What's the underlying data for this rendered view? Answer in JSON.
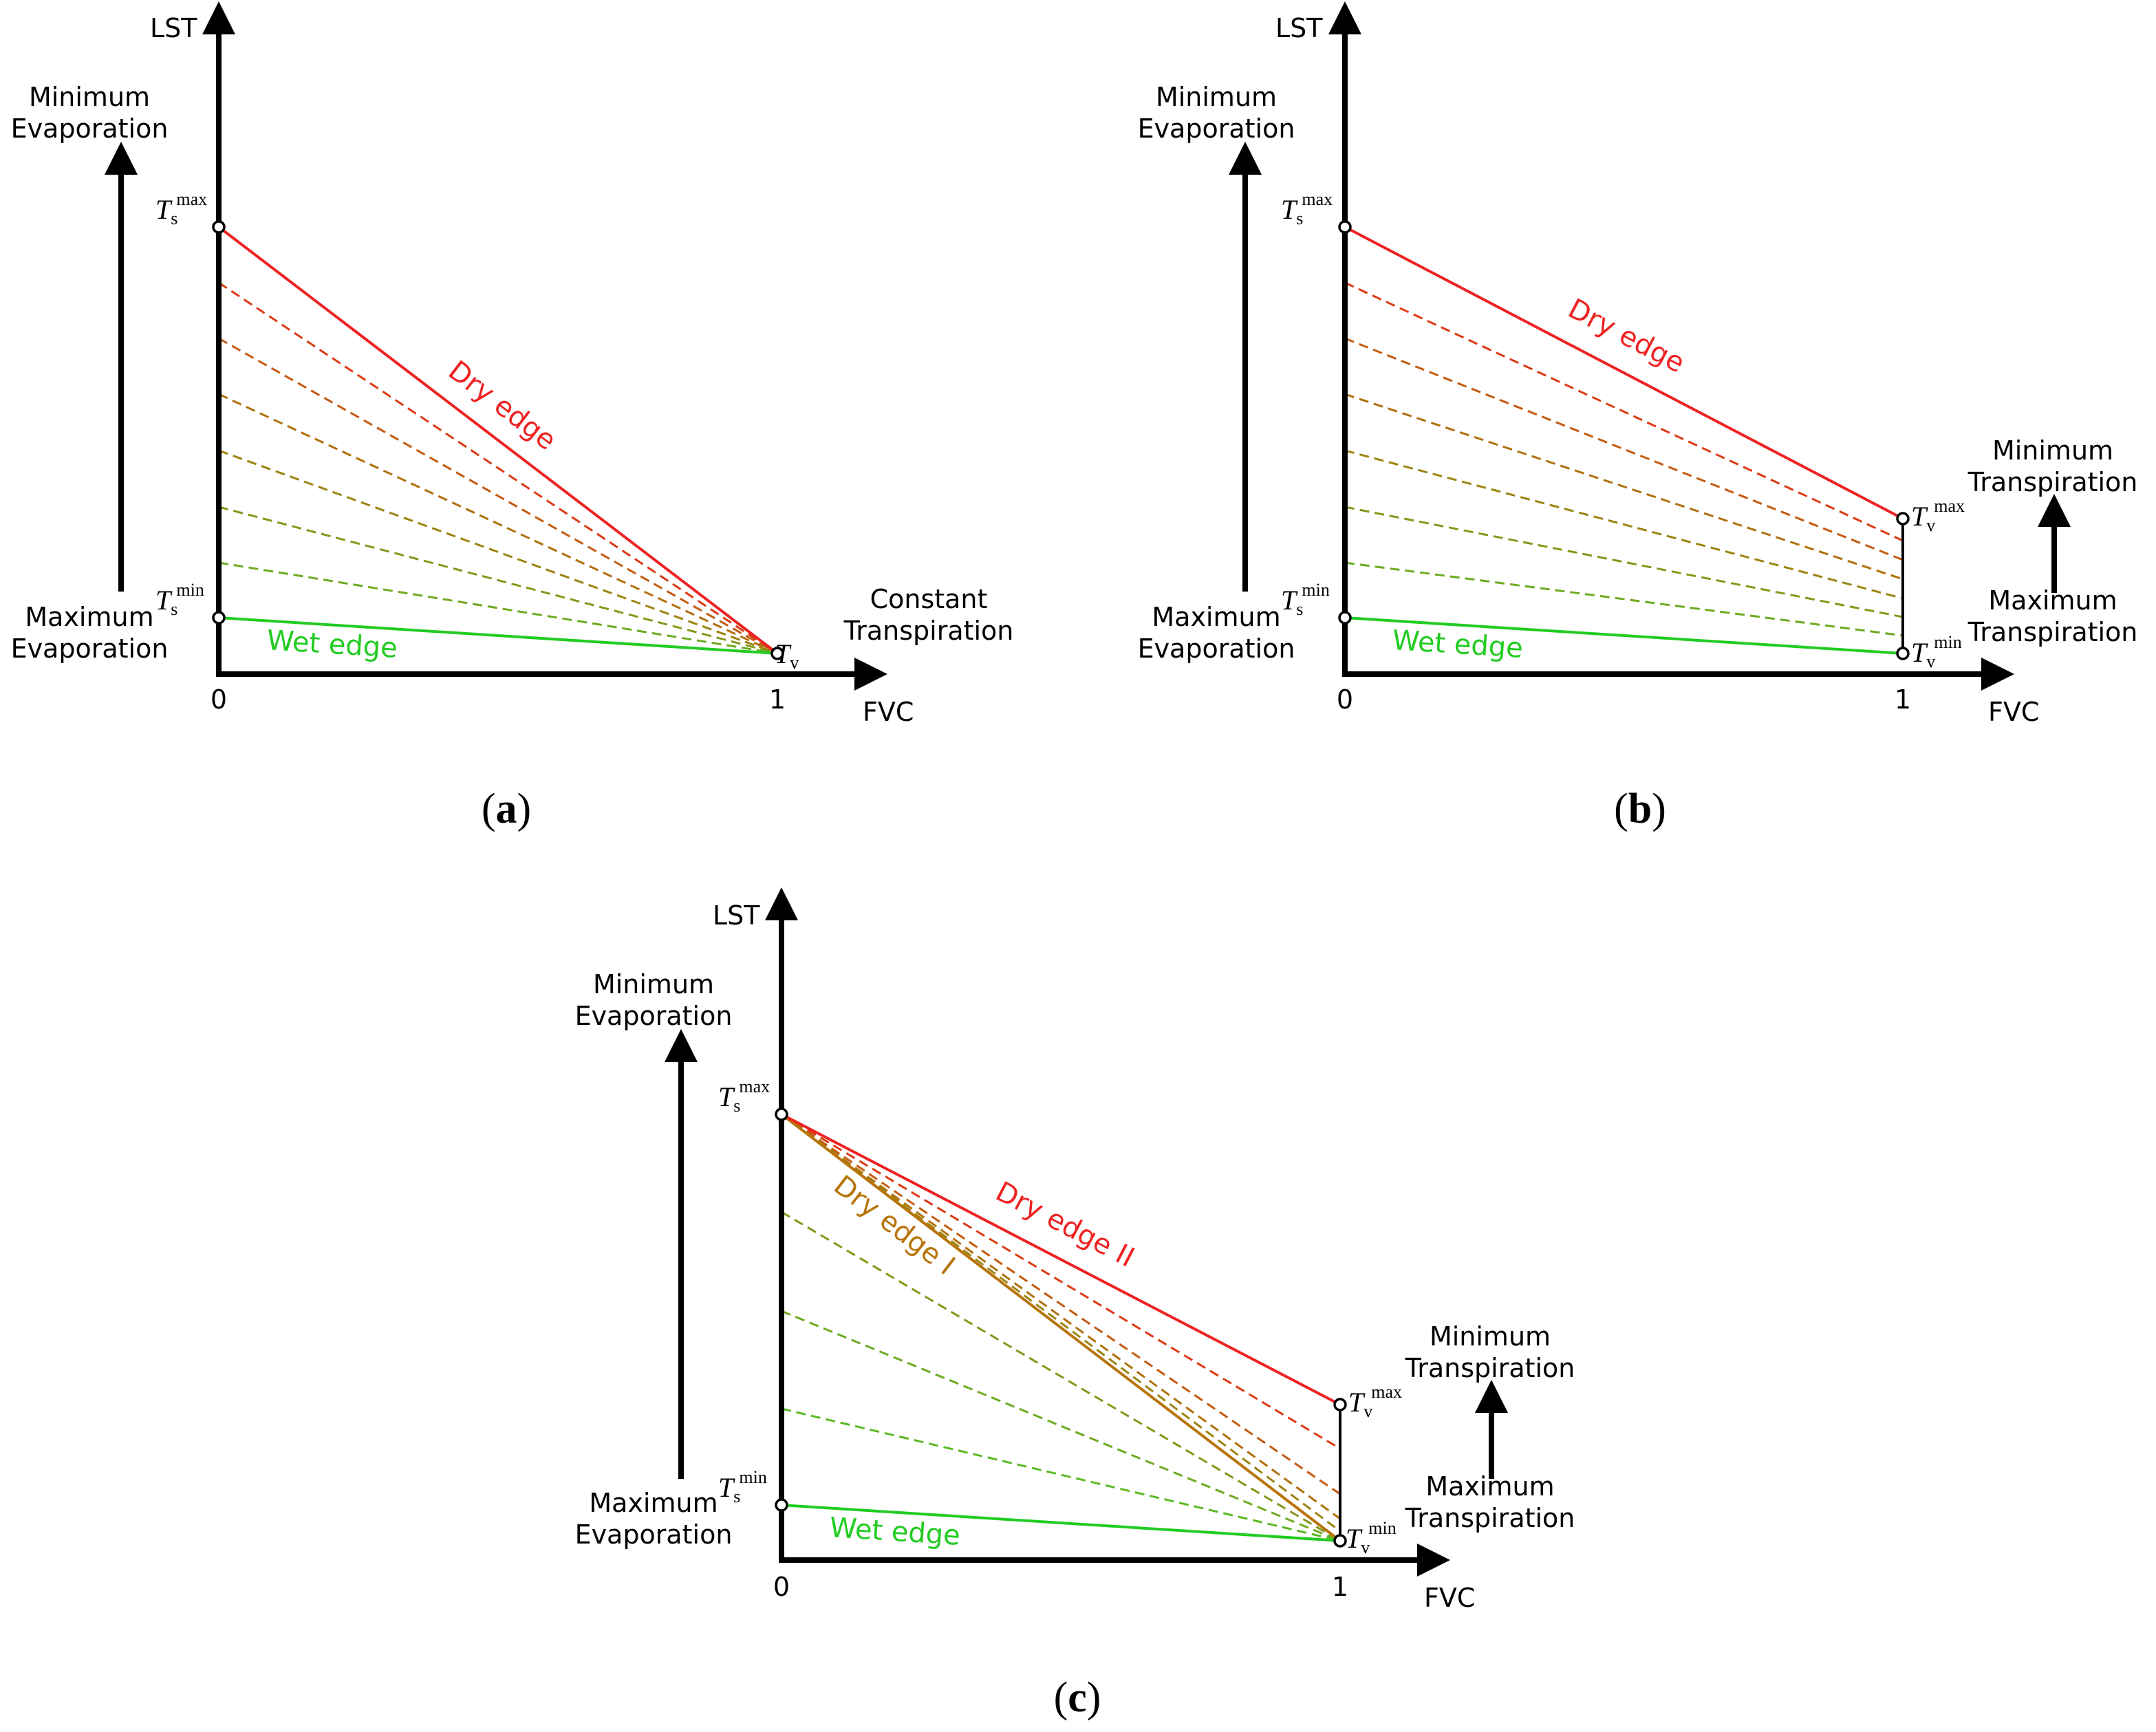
{
  "colors": {
    "axis": "#000000",
    "dry_edge": "#ee2222",
    "wet_edge": "#22cc22",
    "dry_edge_i": "#b8740a",
    "dashed_gradient": [
      "#dd3a14",
      "#c45a10",
      "#b0700c",
      "#9a8410",
      "#84981a",
      "#6eaa20",
      "#5aba22"
    ]
  },
  "icons": [
    "arrow-up-icon",
    "arrow-right-icon",
    "open-circle-icon"
  ],
  "panels": [
    {
      "id": "a",
      "caption_letter": "a",
      "y_axis_label": "LST",
      "x_axis_label": "FVC",
      "x_tick_0": "0",
      "x_tick_1": "1",
      "left_top_label": [
        "Minimum",
        "Evaporation"
      ],
      "left_bottom_label": [
        "Maximum",
        "Evaporation"
      ],
      "right_label": [
        "Constant",
        "Transpiration"
      ],
      "dry_edge_label": "Dry edge",
      "wet_edge_label": "Wet edge",
      "ts_symbol": "T",
      "ts_sub": "s",
      "ts_max_sup": "max",
      "ts_min_sup": "min",
      "tv_symbol": "T",
      "tv_sub": "v"
    },
    {
      "id": "b",
      "caption_letter": "b",
      "y_axis_label": "LST",
      "x_axis_label": "FVC",
      "x_tick_0": "0",
      "x_tick_1": "1",
      "left_top_label": [
        "Minimum",
        "Evaporation"
      ],
      "left_bottom_label": [
        "Maximum",
        "Evaporation"
      ],
      "right_top_label": [
        "Minimum",
        "Transpiration"
      ],
      "right_bottom_label": [
        "Maximum",
        "Transpiration"
      ],
      "dry_edge_label": "Dry edge",
      "wet_edge_label": "Wet edge",
      "ts_symbol": "T",
      "ts_sub": "s",
      "ts_max_sup": "max",
      "ts_min_sup": "min",
      "tv_symbol": "T",
      "tv_sub": "v",
      "tv_max_sup": "max",
      "tv_min_sup": "min"
    },
    {
      "id": "c",
      "caption_letter": "c",
      "y_axis_label": "LST",
      "x_axis_label": "FVC",
      "x_tick_0": "0",
      "x_tick_1": "1",
      "left_top_label": [
        "Minimum",
        "Evaporation"
      ],
      "left_bottom_label": [
        "Maximum",
        "Evaporation"
      ],
      "right_top_label": [
        "Minimum",
        "Transpiration"
      ],
      "right_bottom_label": [
        "Maximum",
        "Transpiration"
      ],
      "dry_edge_ii_label": "Dry edge II",
      "dry_edge_i_label": "Dry edge I",
      "wet_edge_label": "Wet edge",
      "ts_symbol": "T",
      "ts_sub": "s",
      "ts_max_sup": "max",
      "ts_min_sup": "min",
      "tv_symbol": "T",
      "tv_sub": "v",
      "tv_max_sup": "max",
      "tv_min_sup": "min"
    }
  ]
}
